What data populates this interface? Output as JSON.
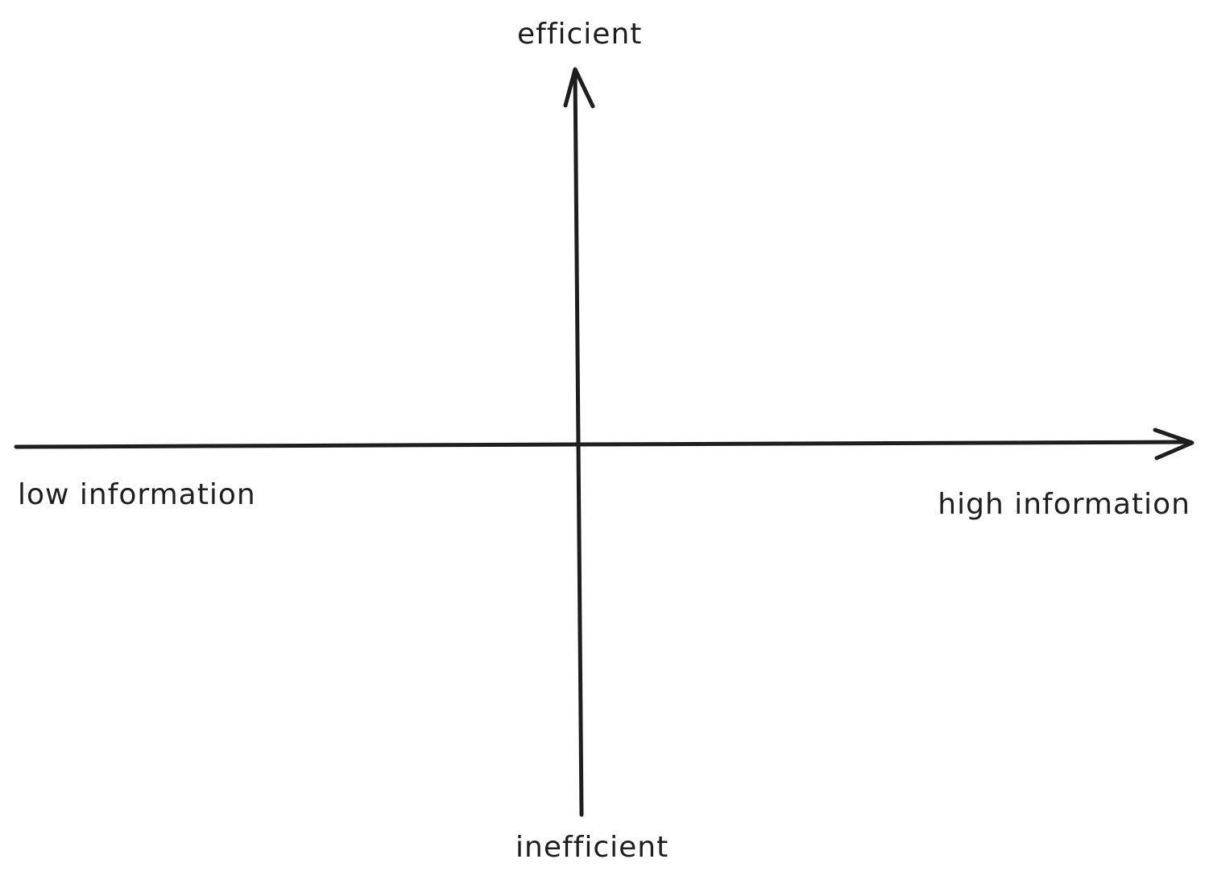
{
  "diagram": {
    "axes": {
      "horizontal": {
        "left_label": "low information",
        "right_label": "high information",
        "arrow": "right"
      },
      "vertical": {
        "top_label": "efficient",
        "bottom_label": "inefficient",
        "arrow": "up"
      }
    }
  },
  "colors": {
    "background": "#ffffff",
    "ink": "#1e1e1e"
  }
}
